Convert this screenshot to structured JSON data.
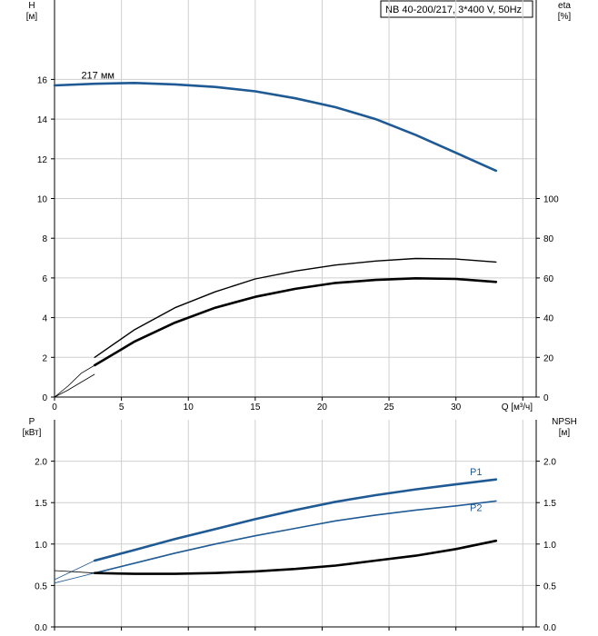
{
  "header": {
    "title": "NB 40-200/217, 3*400 V, 50Hz"
  },
  "chart_data": [
    {
      "type": "line",
      "panel": "head-efficiency",
      "xlabel": "Q [м³/ч]",
      "xlim": [
        0,
        36
      ],
      "x_ticks": [
        "0",
        "5",
        "10",
        "15",
        "20",
        "25",
        "30"
      ],
      "ylabel_left": "H",
      "ylabel_left_unit": "[м]",
      "ylim_left": [
        0,
        20
      ],
      "y_ticks_left": [
        "0",
        "2",
        "4",
        "6",
        "8",
        "10",
        "12",
        "14",
        "16"
      ],
      "ylabel_right": "eta",
      "ylabel_right_unit": "[%]",
      "ylim_right": [
        0,
        200
      ],
      "y_ticks_right": [
        "0",
        "20",
        "40",
        "60",
        "80",
        "100"
      ],
      "grid": true,
      "series": [
        {
          "name": "217 мм",
          "axis": "left",
          "color": "#1f5a94",
          "points": [
            [
              0,
              15.7
            ],
            [
              3,
              15.78
            ],
            [
              6,
              15.82
            ],
            [
              9,
              15.75
            ],
            [
              12,
              15.62
            ],
            [
              15,
              15.4
            ],
            [
              18,
              15.05
            ],
            [
              21,
              14.6
            ],
            [
              24,
              14.0
            ],
            [
              27,
              13.2
            ],
            [
              30,
              12.3
            ],
            [
              33,
              11.4
            ]
          ]
        },
        {
          "axis": "right",
          "color": "#000000",
          "lead_in": [
            [
              0,
              0
            ],
            [
              1,
              3.5
            ],
            [
              2,
              7.5
            ],
            [
              3,
              11.5
            ]
          ],
          "points": [
            [
              3,
              20
            ],
            [
              6,
              34
            ],
            [
              9,
              45
            ],
            [
              12,
              53
            ],
            [
              15,
              59.5
            ],
            [
              18,
              63.5
            ],
            [
              21,
              66.5
            ],
            [
              24,
              68.5
            ],
            [
              27,
              69.8
            ],
            [
              30,
              69.5
            ],
            [
              33,
              68
            ]
          ]
        },
        {
          "axis": "right",
          "color": "#000000",
          "lead_in": [
            [
              0,
              0
            ],
            [
              1,
              5.5
            ],
            [
              2,
              12
            ],
            [
              3,
              16
            ]
          ],
          "points": [
            [
              3,
              16
            ],
            [
              6,
              28
            ],
            [
              9,
              37.5
            ],
            [
              12,
              45
            ],
            [
              15,
              50.5
            ],
            [
              18,
              54.5
            ],
            [
              21,
              57.5
            ],
            [
              24,
              59
            ],
            [
              27,
              59.8
            ],
            [
              30,
              59.5
            ],
            [
              33,
              58
            ]
          ]
        }
      ]
    },
    {
      "type": "line",
      "panel": "power-npsh",
      "xlim": [
        0,
        36
      ],
      "ylabel_left": "P",
      "ylabel_left_unit": "[кВт]",
      "ylim_left": [
        0,
        2.5
      ],
      "y_ticks_left": [
        "0.0",
        "0.5",
        "1.0",
        "1.5",
        "2.0"
      ],
      "ylabel_right": "NPSH",
      "ylabel_right_unit": "[м]",
      "ylim_right": [
        0,
        2.5
      ],
      "y_ticks_right": [
        "0.0",
        "0.5",
        "1.0",
        "1.5",
        "2.0"
      ],
      "grid": true,
      "series": [
        {
          "name": "P1",
          "axis": "left",
          "color": "#1f5a94",
          "lead_in": [
            [
              0,
              0.57
            ],
            [
              3,
              0.8
            ]
          ],
          "points": [
            [
              3,
              0.8
            ],
            [
              6,
              0.93
            ],
            [
              9,
              1.06
            ],
            [
              12,
              1.18
            ],
            [
              15,
              1.3
            ],
            [
              18,
              1.41
            ],
            [
              21,
              1.51
            ],
            [
              24,
              1.59
            ],
            [
              27,
              1.66
            ],
            [
              30,
              1.72
            ],
            [
              33,
              1.78
            ]
          ]
        },
        {
          "name": "P2",
          "axis": "left",
          "color": "#1f5a94",
          "lead_in": [
            [
              0,
              0.53
            ],
            [
              3,
              0.65
            ]
          ],
          "points": [
            [
              3,
              0.65
            ],
            [
              6,
              0.77
            ],
            [
              9,
              0.89
            ],
            [
              12,
              1.0
            ],
            [
              15,
              1.1
            ],
            [
              18,
              1.19
            ],
            [
              21,
              1.28
            ],
            [
              24,
              1.35
            ],
            [
              27,
              1.41
            ],
            [
              30,
              1.46
            ],
            [
              33,
              1.52
            ]
          ]
        },
        {
          "axis": "right",
          "color": "#000000",
          "lead_in": [
            [
              0,
              0.68
            ],
            [
              3,
              0.65
            ]
          ],
          "points": [
            [
              3,
              0.65
            ],
            [
              6,
              0.64
            ],
            [
              9,
              0.64
            ],
            [
              12,
              0.65
            ],
            [
              15,
              0.67
            ],
            [
              18,
              0.7
            ],
            [
              21,
              0.74
            ],
            [
              24,
              0.8
            ],
            [
              27,
              0.86
            ],
            [
              30,
              0.94
            ],
            [
              33,
              1.04
            ]
          ]
        }
      ]
    }
  ]
}
